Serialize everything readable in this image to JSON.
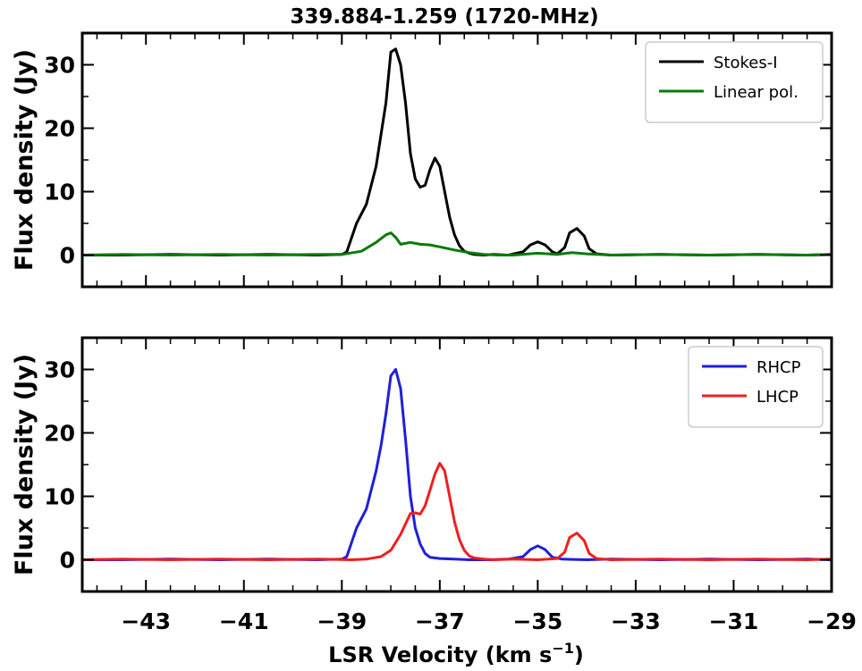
{
  "chart_data": {
    "title": "339.884-1.259 (1720-MHz)",
    "xlabel": "LSR Velocity (km s",
    "xlabel_sup": "−1",
    "xlabel_tail": ")",
    "xlim": [
      -44.3,
      -29
    ],
    "x_major_ticks": [
      -43,
      -41,
      -39,
      -37,
      -35,
      -33,
      -31,
      -29
    ],
    "x_tick_labels": [
      "−43",
      "−41",
      "−39",
      "−37",
      "−35",
      "−33",
      "−31",
      "−29"
    ],
    "panels": [
      {
        "type": "line",
        "ylabel": "Flux density (Jy)",
        "ylim": [
          -5,
          35
        ],
        "y_major_ticks": [
          0,
          10,
          20,
          30
        ],
        "y_tick_labels": [
          "0",
          "10",
          "20",
          "30"
        ],
        "legend": "top-right",
        "series": [
          {
            "name": "Stokes-I",
            "color": "#000000",
            "x": [
              -44.3,
              -43.5,
              -42.5,
              -41.5,
              -40.5,
              -39.5,
              -39.0,
              -38.9,
              -38.7,
              -38.5,
              -38.3,
              -38.1,
              -38.0,
              -37.9,
              -37.8,
              -37.7,
              -37.6,
              -37.5,
              -37.4,
              -37.3,
              -37.2,
              -37.1,
              -37.0,
              -36.9,
              -36.8,
              -36.7,
              -36.6,
              -36.5,
              -36.4,
              -36.3,
              -36.1,
              -35.9,
              -35.6,
              -35.3,
              -35.15,
              -35.0,
              -34.85,
              -34.7,
              -34.6,
              -34.45,
              -34.35,
              -34.2,
              -34.05,
              -33.95,
              -33.8,
              -33.5,
              -32.5,
              -31.5,
              -30.5,
              -29.5,
              -29.0
            ],
            "y": [
              0,
              0,
              0.1,
              0,
              0.1,
              0,
              0.1,
              0.5,
              5,
              8,
              14,
              24,
              32,
              32.5,
              30,
              24,
              16,
              12,
              10.7,
              11,
              13.5,
              15.3,
              14,
              10,
              6,
              3.2,
              1.5,
              0.6,
              0.3,
              0.1,
              0,
              0.1,
              0,
              0.5,
              1.6,
              2.1,
              1.6,
              0.5,
              0.2,
              1.2,
              3.5,
              4.2,
              3,
              1,
              0.2,
              0,
              0.1,
              0,
              0.1,
              0,
              0.1
            ]
          },
          {
            "name": "Linear pol.",
            "color": "#0a7a0a",
            "x": [
              -44.3,
              -43.5,
              -42.5,
              -41.5,
              -40.5,
              -39.5,
              -39.0,
              -38.6,
              -38.3,
              -38.1,
              -38.0,
              -37.9,
              -37.8,
              -37.6,
              -37.4,
              -37.2,
              -37.0,
              -36.7,
              -36.4,
              -36.1,
              -35.8,
              -35.5,
              -35.0,
              -34.6,
              -34.3,
              -34.0,
              -33.5,
              -32.5,
              -31.5,
              -30.5,
              -29.5,
              -29.0
            ],
            "y": [
              0,
              0.1,
              0,
              0.1,
              0,
              0.1,
              0.1,
              0.6,
              2,
              3.2,
              3.5,
              2.8,
              1.7,
              2,
              1.7,
              1.6,
              1.3,
              0.8,
              0.4,
              0.1,
              0,
              0,
              0.3,
              0.1,
              0.4,
              0.2,
              0,
              0.1,
              0,
              0.1,
              0,
              0.1
            ]
          }
        ]
      },
      {
        "type": "line",
        "ylabel": "Flux density (Jy)",
        "ylim": [
          -5,
          35
        ],
        "y_major_ticks": [
          0,
          10,
          20,
          30
        ],
        "y_tick_labels": [
          "0",
          "10",
          "20",
          "30"
        ],
        "legend": "top-right",
        "series": [
          {
            "name": "RHCP",
            "color": "#1f1fdc",
            "x": [
              -44.3,
              -43.5,
              -42.5,
              -41.5,
              -40.5,
              -39.5,
              -39.0,
              -38.9,
              -38.7,
              -38.5,
              -38.3,
              -38.2,
              -38.1,
              -38.0,
              -37.9,
              -37.8,
              -37.7,
              -37.6,
              -37.5,
              -37.4,
              -37.3,
              -37.2,
              -37.0,
              -36.7,
              -36.4,
              -36.0,
              -35.6,
              -35.3,
              -35.15,
              -35.0,
              -34.85,
              -34.7,
              -34.5,
              -34.0,
              -33.5,
              -32.5,
              -31.5,
              -30.5,
              -29.5,
              -29.0
            ],
            "y": [
              0,
              0,
              0.1,
              0,
              0.1,
              0,
              0.1,
              0.5,
              5,
              8,
              14,
              18,
              23,
              29,
              30,
              27,
              19,
              10,
              5,
              2.5,
              1,
              0.4,
              0.2,
              0.1,
              0,
              0,
              0.1,
              0.5,
              1.6,
              2.2,
              1.6,
              0.4,
              0.1,
              0,
              0.1,
              0,
              0.1,
              0,
              0.1,
              0
            ]
          },
          {
            "name": "LHCP",
            "color": "#ee1f1f",
            "x": [
              -44.3,
              -43.5,
              -42.5,
              -41.5,
              -40.5,
              -39.5,
              -38.8,
              -38.5,
              -38.2,
              -38.0,
              -37.8,
              -37.6,
              -37.5,
              -37.4,
              -37.3,
              -37.2,
              -37.1,
              -37.0,
              -36.9,
              -36.8,
              -36.7,
              -36.6,
              -36.5,
              -36.4,
              -36.3,
              -36.1,
              -35.9,
              -35.5,
              -35.0,
              -34.6,
              -34.45,
              -34.35,
              -34.2,
              -34.05,
              -33.95,
              -33.8,
              -33.5,
              -32.5,
              -31.5,
              -30.5,
              -29.5,
              -29.0
            ],
            "y": [
              0,
              0.1,
              0,
              0.1,
              0,
              0.1,
              0,
              0.1,
              0.5,
              1.5,
              4,
              7.3,
              7.4,
              7.2,
              8.5,
              11,
              13.5,
              15.2,
              14,
              10,
              6,
              3.2,
              1.5,
              0.6,
              0.3,
              0.1,
              0,
              0.1,
              0,
              0.2,
              1.2,
              3.5,
              4.2,
              3,
              1,
              0.2,
              0,
              0.1,
              0,
              0.1,
              0,
              0.1
            ]
          }
        ]
      }
    ]
  }
}
